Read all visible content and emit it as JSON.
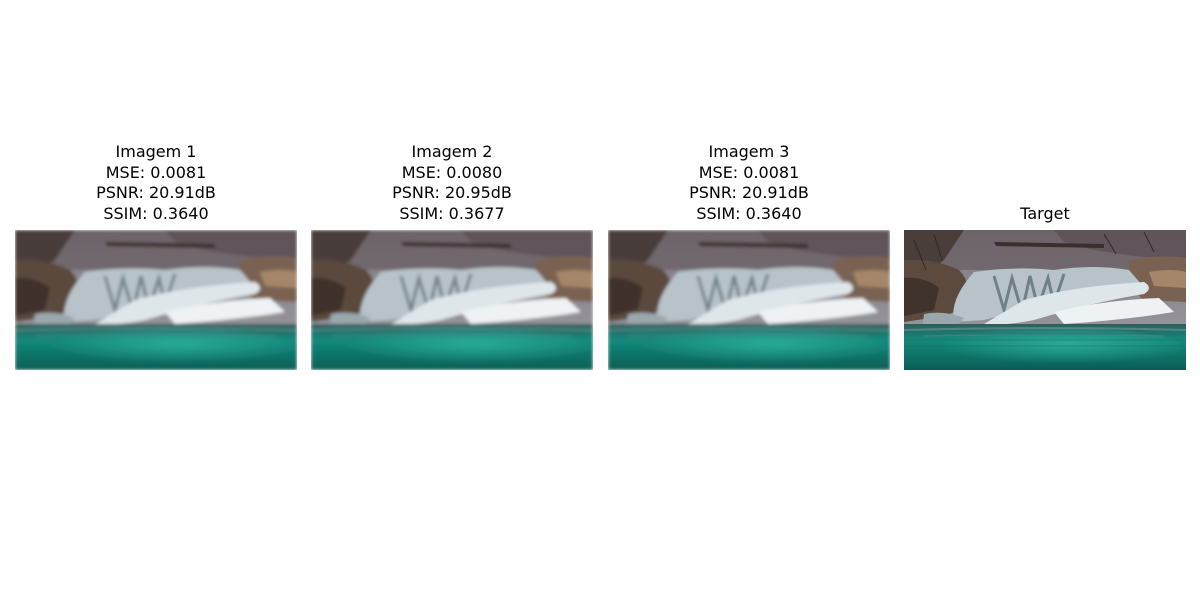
{
  "panels": [
    {
      "title": "Imagem 1",
      "mse": "MSE: 0.0081",
      "psnr": "PSNR: 20.91dB",
      "ssim": "SSIM: 0.3640"
    },
    {
      "title": "Imagem 2",
      "mse": "MSE: 0.0080",
      "psnr": "PSNR: 20.95dB",
      "ssim": "SSIM: 0.3677"
    },
    {
      "title": "Imagem 3",
      "mse": "MSE: 0.0081",
      "psnr": "PSNR: 20.91dB",
      "ssim": "SSIM: 0.3640"
    },
    {
      "title": "Target"
    }
  ],
  "colors": {
    "water": "#0f8f7e",
    "water_deep": "#0a5d55",
    "ice": "#c9d4d8",
    "rock": "#6b5646",
    "sky": "#8c8a8f"
  }
}
